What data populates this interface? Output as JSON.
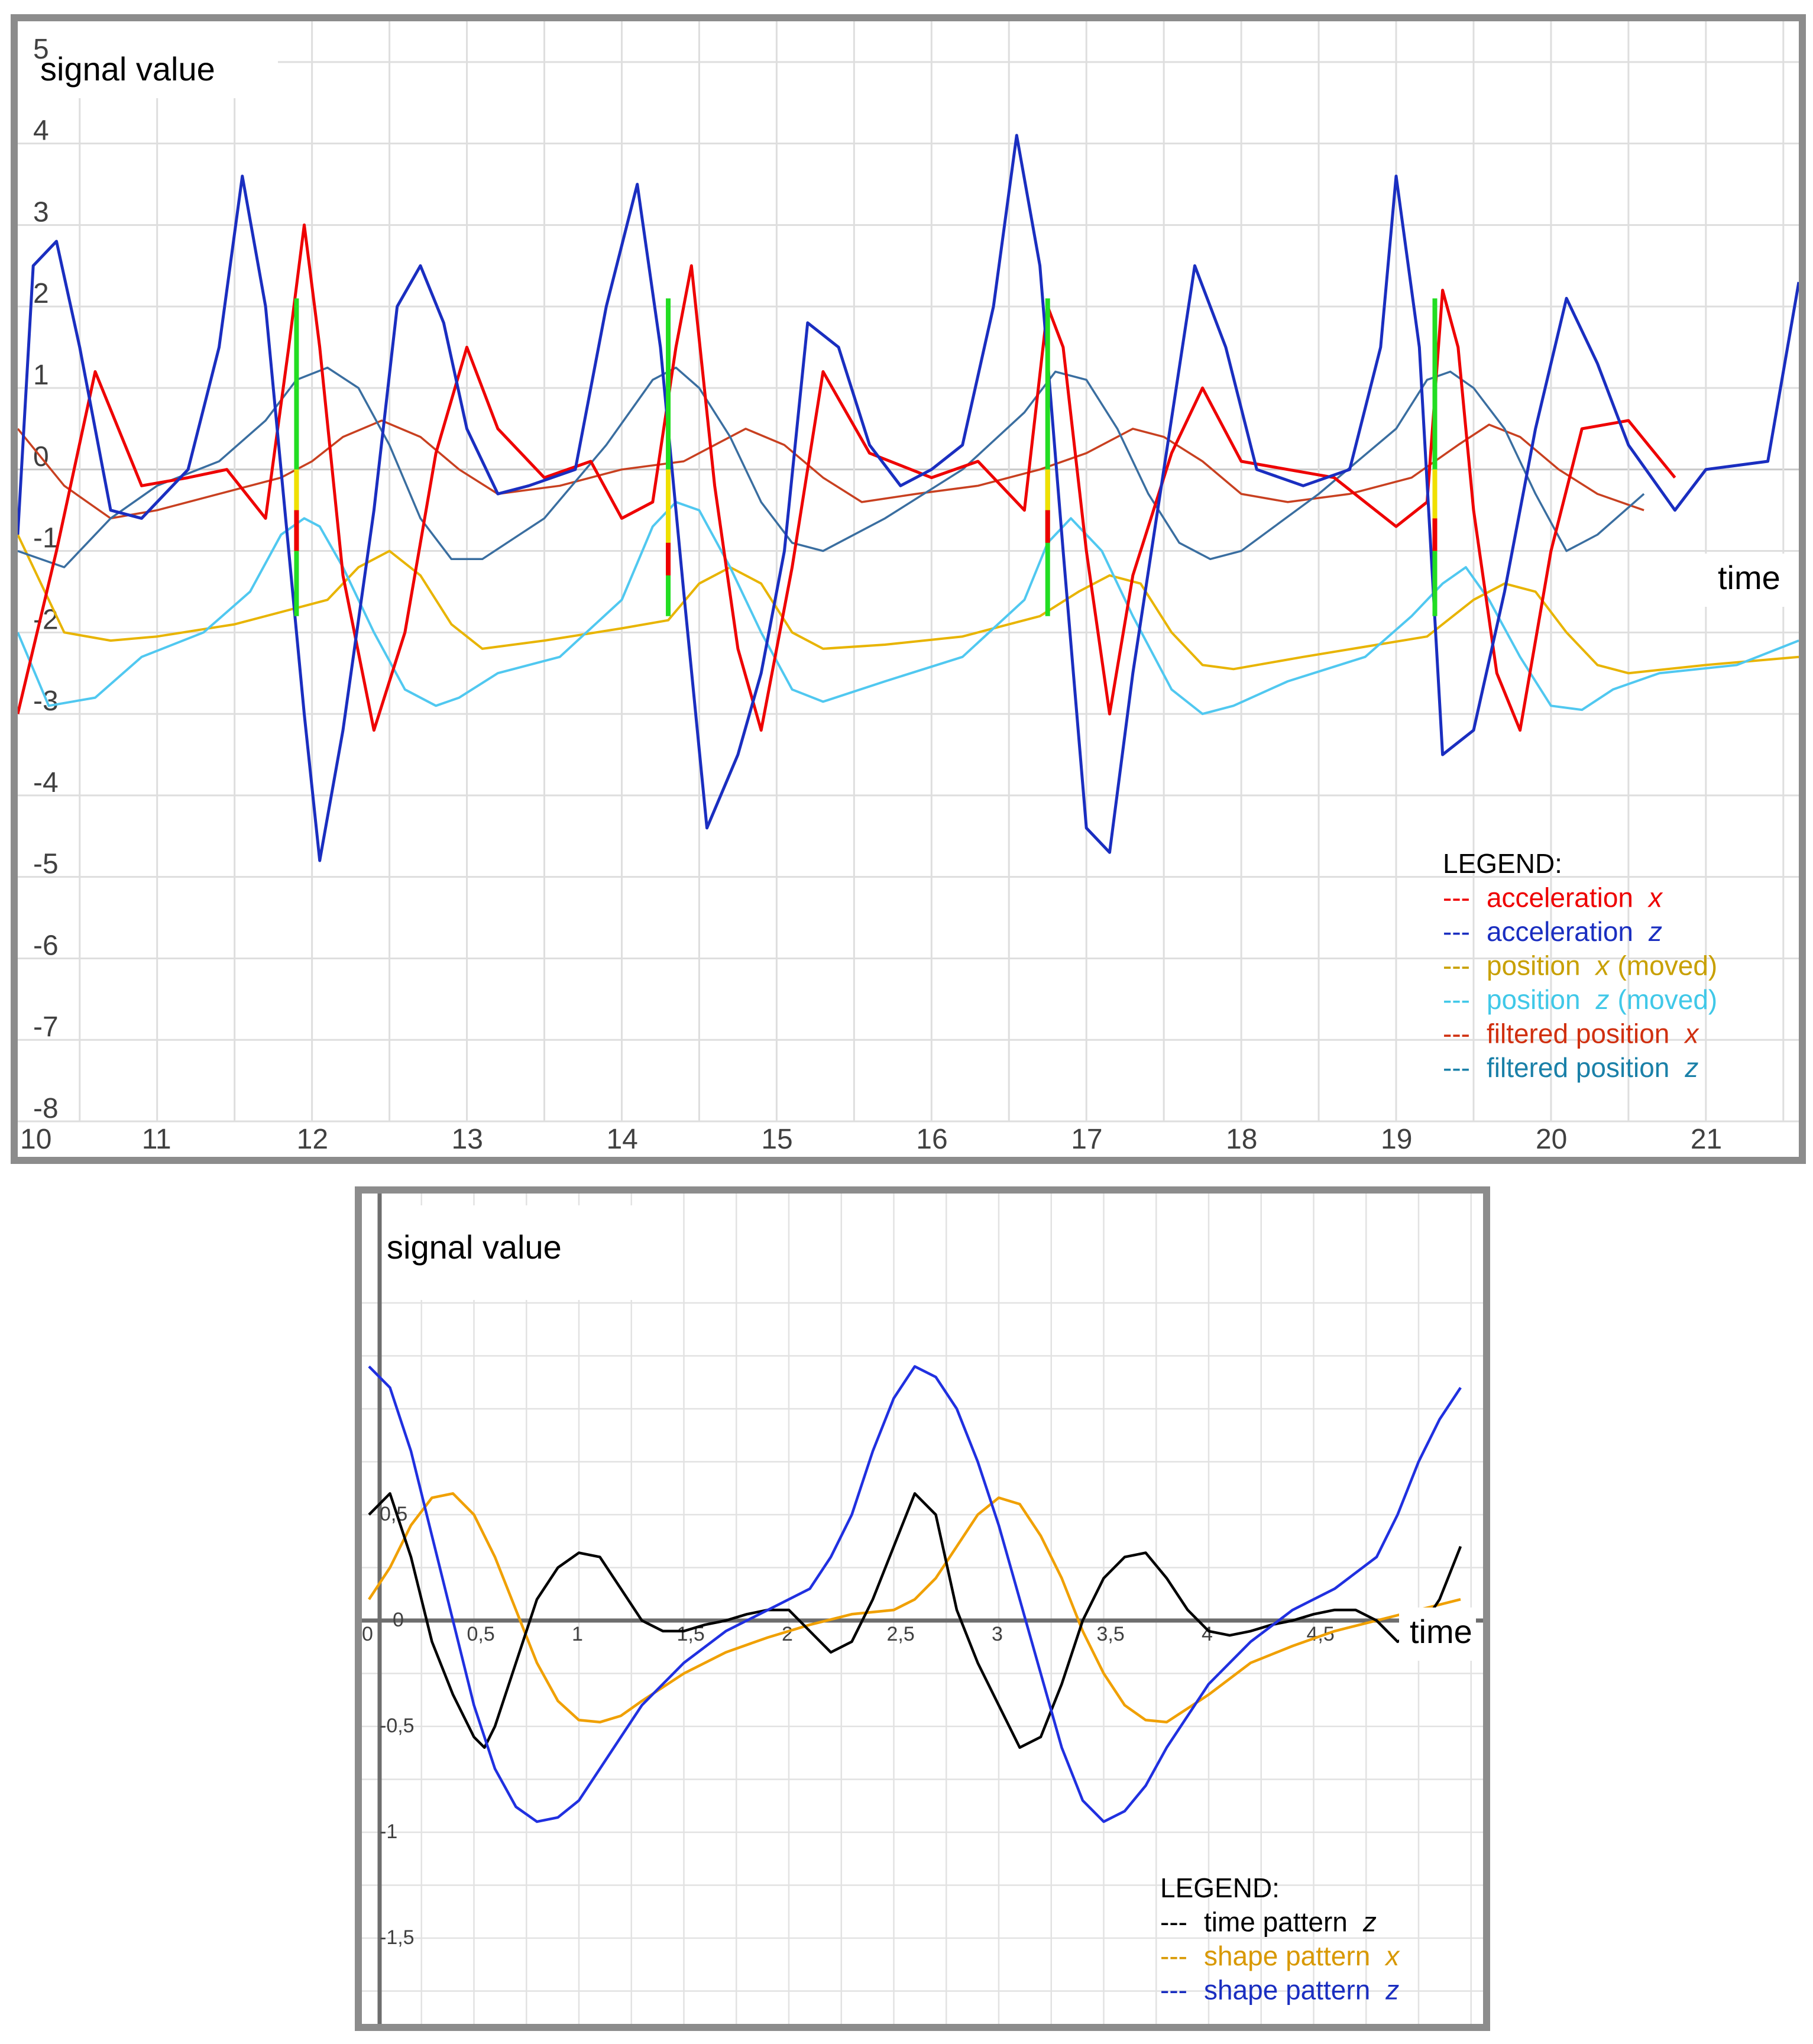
{
  "chart_data": [
    {
      "type": "line",
      "title": "signal value",
      "xlabel": "time",
      "ylabel": "signal value",
      "xlim": [
        10.1,
        21.6
      ],
      "ylim": [
        -8,
        5.5
      ],
      "grid": true,
      "x_ticks": [
        "10",
        "11",
        "12",
        "13",
        "14",
        "15",
        "16",
        "17",
        "18",
        "19",
        "20",
        "21"
      ],
      "y_ticks": [
        "5",
        "4",
        "3",
        "2",
        "1",
        "0",
        "-1",
        "-2",
        "-3",
        "-4",
        "-5",
        "-6",
        "-7",
        "-8"
      ],
      "legend": {
        "title": "LEGEND:",
        "position": "bottom-right",
        "entries": [
          {
            "dash": "---",
            "name": "acceleration",
            "axis": "x",
            "color": "#ee0000"
          },
          {
            "dash": "---",
            "name": "acceleration",
            "axis": "z",
            "color": "#1a2ec0"
          },
          {
            "dash": "---",
            "name": "position",
            "axis": "x",
            "suffix": "(moved)",
            "color": "#c8a000"
          },
          {
            "dash": "---",
            "name": "position",
            "axis": "z",
            "suffix": "(moved)",
            "color": "#40c8e8"
          },
          {
            "dash": "---",
            "name": "filtered position",
            "axis": "x",
            "suffix": "",
            "color": "#d03010"
          },
          {
            "dash": "---",
            "name": "filtered position",
            "axis": "z",
            "suffix": "",
            "color": "#1a80a8"
          }
        ]
      },
      "series": [
        {
          "key": "acc_x",
          "color": "#ee0000",
          "x": [
            10.1,
            10.35,
            10.6,
            10.9,
            11.2,
            11.45,
            11.7,
            11.85,
            11.95,
            12.05,
            12.2,
            12.4,
            12.6,
            12.8,
            13.0,
            13.2,
            13.5,
            13.8,
            14.0,
            14.2,
            14.35,
            14.45,
            14.6,
            14.75,
            14.9,
            15.1,
            15.3,
            15.6,
            16.0,
            16.3,
            16.6,
            16.75,
            16.85,
            17.0,
            17.15,
            17.3,
            17.55,
            17.75,
            18.0,
            18.3,
            18.6,
            19.0,
            19.2,
            19.3,
            19.4,
            19.5,
            19.65,
            19.8,
            20.0,
            20.2,
            20.5,
            20.8
          ],
          "y": [
            -3,
            -1,
            1.2,
            -0.2,
            -0.1,
            0,
            -0.6,
            1.5,
            3,
            1.5,
            -1.3,
            -3.2,
            -2,
            0.2,
            1.5,
            0.5,
            -0.1,
            0.1,
            -0.6,
            -0.4,
            1.5,
            2.5,
            -0.2,
            -2.2,
            -3.2,
            -1.2,
            1.2,
            0.2,
            -0.1,
            0.1,
            -0.5,
            2,
            1.5,
            -1,
            -3,
            -1.3,
            0.2,
            1,
            0.1,
            0,
            -0.1,
            -0.7,
            -0.4,
            2.2,
            1.5,
            -0.5,
            -2.5,
            -3.2,
            -1,
            0.5,
            0.6,
            -0.1
          ]
        },
        {
          "key": "acc_z",
          "color": "#1a2ec0",
          "x": [
            10.1,
            10.2,
            10.35,
            10.5,
            10.7,
            10.9,
            11.2,
            11.4,
            11.55,
            11.7,
            11.85,
            11.95,
            12.05,
            12.2,
            12.4,
            12.55,
            12.7,
            12.85,
            13.0,
            13.2,
            13.4,
            13.7,
            13.9,
            14.1,
            14.25,
            14.4,
            14.55,
            14.75,
            14.9,
            15.05,
            15.2,
            15.4,
            15.6,
            15.8,
            16.0,
            16.2,
            16.4,
            16.55,
            16.7,
            16.85,
            17.0,
            17.15,
            17.3,
            17.5,
            17.7,
            17.9,
            18.1,
            18.4,
            18.7,
            18.9,
            19.0,
            19.15,
            19.3,
            19.5,
            19.7,
            19.9,
            20.1,
            20.3,
            20.5,
            20.8,
            21.0,
            21.4,
            21.6
          ],
          "y": [
            -0.8,
            2.5,
            2.8,
            1.5,
            -0.5,
            -0.6,
            0,
            1.5,
            3.6,
            2,
            -1,
            -3,
            -4.8,
            -3.2,
            -0.5,
            2,
            2.5,
            1.8,
            0.5,
            -0.3,
            -0.2,
            0,
            2,
            3.5,
            1.5,
            -1.5,
            -4.4,
            -3.5,
            -2.5,
            -1,
            1.8,
            1.5,
            0.3,
            -0.2,
            0,
            0.3,
            2,
            4.1,
            2.5,
            -1,
            -4.4,
            -4.7,
            -2.5,
            0,
            2.5,
            1.5,
            0,
            -0.2,
            0,
            1.5,
            3.6,
            1.5,
            -3.5,
            -3.2,
            -1.5,
            0.5,
            2.1,
            1.3,
            0.3,
            -0.5,
            0,
            0.1,
            2.3
          ]
        },
        {
          "key": "pos_x",
          "color": "#e8b400",
          "x": [
            10.1,
            10.4,
            10.7,
            11.0,
            11.5,
            11.9,
            12.1,
            12.3,
            12.5,
            12.7,
            12.9,
            13.1,
            13.5,
            14.0,
            14.3,
            14.5,
            14.7,
            14.9,
            15.1,
            15.3,
            15.7,
            16.2,
            16.7,
            16.95,
            17.15,
            17.35,
            17.55,
            17.75,
            17.95,
            18.4,
            19.2,
            19.5,
            19.7,
            19.9,
            20.1,
            20.3,
            20.5,
            21.0,
            21.6
          ],
          "y": [
            -0.8,
            -2,
            -2.1,
            -2.05,
            -1.9,
            -1.7,
            -1.6,
            -1.2,
            -1,
            -1.3,
            -1.9,
            -2.2,
            -2.1,
            -1.95,
            -1.85,
            -1.4,
            -1.2,
            -1.4,
            -2,
            -2.2,
            -2.15,
            -2.05,
            -1.8,
            -1.5,
            -1.3,
            -1.4,
            -2,
            -2.4,
            -2.45,
            -2.3,
            -2.05,
            -1.6,
            -1.4,
            -1.5,
            -2,
            -2.4,
            -2.5,
            -2.4,
            -2.3
          ]
        },
        {
          "key": "pos_z",
          "color": "#50c8f0",
          "x": [
            10.1,
            10.3,
            10.6,
            10.9,
            11.3,
            11.6,
            11.8,
            11.95,
            12.05,
            12.2,
            12.4,
            12.6,
            12.8,
            12.95,
            13.2,
            13.6,
            14.0,
            14.2,
            14.35,
            14.5,
            14.7,
            14.9,
            15.1,
            15.3,
            15.7,
            16.2,
            16.6,
            16.75,
            16.9,
            17.1,
            17.3,
            17.55,
            17.75,
            17.95,
            18.3,
            18.8,
            19.1,
            19.3,
            19.45,
            19.6,
            19.8,
            20.0,
            20.2,
            20.4,
            20.7,
            21.2,
            21.6
          ],
          "y": [
            -2,
            -2.9,
            -2.8,
            -2.3,
            -2,
            -1.5,
            -0.8,
            -0.6,
            -0.7,
            -1.2,
            -2,
            -2.7,
            -2.9,
            -2.8,
            -2.5,
            -2.3,
            -1.6,
            -0.7,
            -0.4,
            -0.5,
            -1.2,
            -2,
            -2.7,
            -2.85,
            -2.6,
            -2.3,
            -1.6,
            -0.9,
            -0.6,
            -1,
            -1.8,
            -2.7,
            -3,
            -2.9,
            -2.6,
            -2.3,
            -1.8,
            -1.4,
            -1.2,
            -1.6,
            -2.3,
            -2.9,
            -2.95,
            -2.7,
            -2.5,
            -2.4,
            -2.1
          ]
        },
        {
          "key": "filt_x",
          "color": "#c84020",
          "x": [
            10.1,
            10.4,
            10.7,
            11.0,
            11.4,
            11.8,
            12.0,
            12.2,
            12.45,
            12.7,
            12.95,
            13.2,
            13.6,
            14.0,
            14.4,
            14.6,
            14.8,
            15.05,
            15.3,
            15.55,
            15.9,
            16.3,
            16.7,
            17.0,
            17.3,
            17.5,
            17.75,
            18.0,
            18.3,
            18.7,
            19.1,
            19.4,
            19.6,
            19.8,
            20.05,
            20.3,
            20.6
          ],
          "y": [
            0.5,
            -0.2,
            -0.6,
            -0.5,
            -0.3,
            -0.1,
            0.1,
            0.4,
            0.6,
            0.4,
            0,
            -0.3,
            -0.2,
            0,
            0.1,
            0.3,
            0.5,
            0.3,
            -0.1,
            -0.4,
            -0.3,
            -0.2,
            0,
            0.2,
            0.5,
            0.4,
            0.1,
            -0.3,
            -0.4,
            -0.3,
            -0.1,
            0.3,
            0.55,
            0.4,
            0,
            -0.3,
            -0.5
          ]
        },
        {
          "key": "filt_z",
          "color": "#3a6ea0",
          "x": [
            10.1,
            10.4,
            10.7,
            11.0,
            11.4,
            11.7,
            11.9,
            12.1,
            12.3,
            12.5,
            12.7,
            12.9,
            13.1,
            13.5,
            13.9,
            14.2,
            14.35,
            14.5,
            14.7,
            14.9,
            15.1,
            15.3,
            15.7,
            16.2,
            16.6,
            16.8,
            17.0,
            17.2,
            17.4,
            17.6,
            17.8,
            18.0,
            18.5,
            19.0,
            19.2,
            19.35,
            19.5,
            19.7,
            19.9,
            20.1,
            20.3,
            20.6
          ],
          "y": [
            -1,
            -1.2,
            -0.6,
            -0.2,
            0.1,
            0.6,
            1.1,
            1.25,
            1,
            0.3,
            -0.6,
            -1.1,
            -1.1,
            -0.6,
            0.3,
            1.1,
            1.25,
            1,
            0.4,
            -0.4,
            -0.9,
            -1,
            -0.6,
            0,
            0.7,
            1.2,
            1.1,
            0.5,
            -0.3,
            -0.9,
            -1.1,
            -1,
            -0.3,
            0.5,
            1.1,
            1.2,
            1,
            0.5,
            -0.3,
            -1,
            -0.8,
            -0.3
          ]
        }
      ],
      "markers": [
        {
          "x": 11.9,
          "y_green": [
            2.1,
            -1.8
          ],
          "y_yellow": [
            0,
            -0.5
          ],
          "y_red": [
            -0.5,
            -1.0
          ]
        },
        {
          "x": 14.3,
          "y_green": [
            2.1,
            -1.8
          ],
          "y_yellow": [
            0,
            -0.9
          ],
          "y_red": [
            -0.9,
            -1.3
          ]
        },
        {
          "x": 16.75,
          "y_green": [
            2.1,
            -1.8
          ],
          "y_yellow": [
            0,
            -0.5
          ],
          "y_red": [
            -0.5,
            -0.9
          ]
        },
        {
          "x": 19.25,
          "y_green": [
            2.1,
            -1.8
          ],
          "y_yellow": [
            0,
            -0.6
          ],
          "y_red": [
            -0.6,
            -1.0
          ]
        }
      ]
    },
    {
      "type": "line",
      "title": "signal value",
      "xlabel": "time",
      "ylabel": "signal value",
      "xlim": [
        0,
        5.3
      ],
      "ylim": [
        -1.95,
        1.5
      ],
      "grid": true,
      "x_ticks": [
        "0",
        "0,5",
        "1",
        "1,5",
        "2",
        "2,5",
        "3",
        "3,5",
        "4",
        "4,5"
      ],
      "y_ticks": [
        "0,5",
        "0",
        "-0,5",
        "-1",
        "-1,5"
      ],
      "legend": {
        "title": "LEGEND:",
        "position": "bottom-right",
        "entries": [
          {
            "dash": "---",
            "name": "time pattern",
            "axis": "z",
            "color": "#000000"
          },
          {
            "dash": "---",
            "name": "shape pattern",
            "axis": "x",
            "color": "#d89800"
          },
          {
            "dash": "---",
            "name": "shape pattern",
            "axis": "z",
            "color": "#1a2ec0"
          }
        ]
      },
      "series": [
        {
          "key": "time_z",
          "color": "#000000",
          "x": [
            0,
            0.1,
            0.2,
            0.3,
            0.4,
            0.5,
            0.55,
            0.6,
            0.7,
            0.8,
            0.9,
            1.0,
            1.1,
            1.2,
            1.3,
            1.4,
            1.5,
            1.6,
            1.7,
            1.8,
            1.9,
            2.0,
            2.1,
            2.2,
            2.3,
            2.4,
            2.5,
            2.6,
            2.7,
            2.8,
            2.9,
            3.0,
            3.1,
            3.2,
            3.3,
            3.4,
            3.5,
            3.6,
            3.7,
            3.8,
            3.9,
            4.0,
            4.1,
            4.2,
            4.3,
            4.4,
            4.5,
            4.6,
            4.7,
            4.8,
            4.9,
            5.0,
            5.1,
            5.2
          ],
          "y": [
            0.5,
            0.6,
            0.3,
            -0.1,
            -0.35,
            -0.55,
            -0.6,
            -0.5,
            -0.2,
            0.1,
            0.25,
            0.32,
            0.3,
            0.15,
            0,
            -0.05,
            -0.05,
            -0.02,
            0,
            0.03,
            0.05,
            0.05,
            -0.05,
            -0.15,
            -0.1,
            0.1,
            0.35,
            0.6,
            0.5,
            0.05,
            -0.2,
            -0.4,
            -0.6,
            -0.55,
            -0.3,
            0,
            0.2,
            0.3,
            0.32,
            0.2,
            0.05,
            -0.05,
            -0.07,
            -0.05,
            -0.02,
            0,
            0.03,
            0.05,
            0.05,
            0,
            -0.1,
            -0.05,
            0.1,
            0.35
          ]
        },
        {
          "key": "shape_x",
          "color": "#f0a000",
          "x": [
            0,
            0.1,
            0.2,
            0.3,
            0.4,
            0.5,
            0.6,
            0.7,
            0.8,
            0.9,
            1.0,
            1.1,
            1.2,
            1.3,
            1.5,
            1.7,
            1.9,
            2.1,
            2.3,
            2.5,
            2.6,
            2.7,
            2.8,
            2.9,
            3.0,
            3.1,
            3.2,
            3.3,
            3.4,
            3.5,
            3.6,
            3.7,
            3.8,
            4.0,
            4.2,
            4.4,
            4.6,
            4.8,
            5.0,
            5.2
          ],
          "y": [
            0.1,
            0.25,
            0.45,
            0.58,
            0.6,
            0.5,
            0.3,
            0.05,
            -0.2,
            -0.38,
            -0.47,
            -0.48,
            -0.45,
            -0.38,
            -0.25,
            -0.15,
            -0.08,
            -0.02,
            0.03,
            0.05,
            0.1,
            0.2,
            0.35,
            0.5,
            0.58,
            0.55,
            0.4,
            0.2,
            -0.05,
            -0.25,
            -0.4,
            -0.47,
            -0.48,
            -0.35,
            -0.2,
            -0.12,
            -0.05,
            0,
            0.05,
            0.1
          ]
        },
        {
          "key": "shape_z",
          "color": "#2030e0",
          "x": [
            0,
            0.1,
            0.2,
            0.3,
            0.4,
            0.5,
            0.6,
            0.7,
            0.8,
            0.9,
            1.0,
            1.1,
            1.2,
            1.3,
            1.5,
            1.7,
            1.9,
            2.1,
            2.2,
            2.3,
            2.4,
            2.5,
            2.6,
            2.7,
            2.8,
            2.9,
            3.0,
            3.1,
            3.2,
            3.3,
            3.4,
            3.5,
            3.6,
            3.7,
            3.8,
            4.0,
            4.2,
            4.4,
            4.6,
            4.8,
            4.9,
            5.0,
            5.1,
            5.2
          ],
          "y": [
            1.2,
            1.1,
            0.8,
            0.4,
            0,
            -0.4,
            -0.7,
            -0.88,
            -0.95,
            -0.93,
            -0.85,
            -0.7,
            -0.55,
            -0.4,
            -0.2,
            -0.05,
            0.05,
            0.15,
            0.3,
            0.5,
            0.8,
            1.05,
            1.2,
            1.15,
            1.0,
            0.75,
            0.45,
            0.1,
            -0.25,
            -0.6,
            -0.85,
            -0.95,
            -0.9,
            -0.78,
            -0.6,
            -0.3,
            -0.1,
            0.05,
            0.15,
            0.3,
            0.5,
            0.75,
            0.95,
            1.1
          ]
        }
      ]
    }
  ]
}
